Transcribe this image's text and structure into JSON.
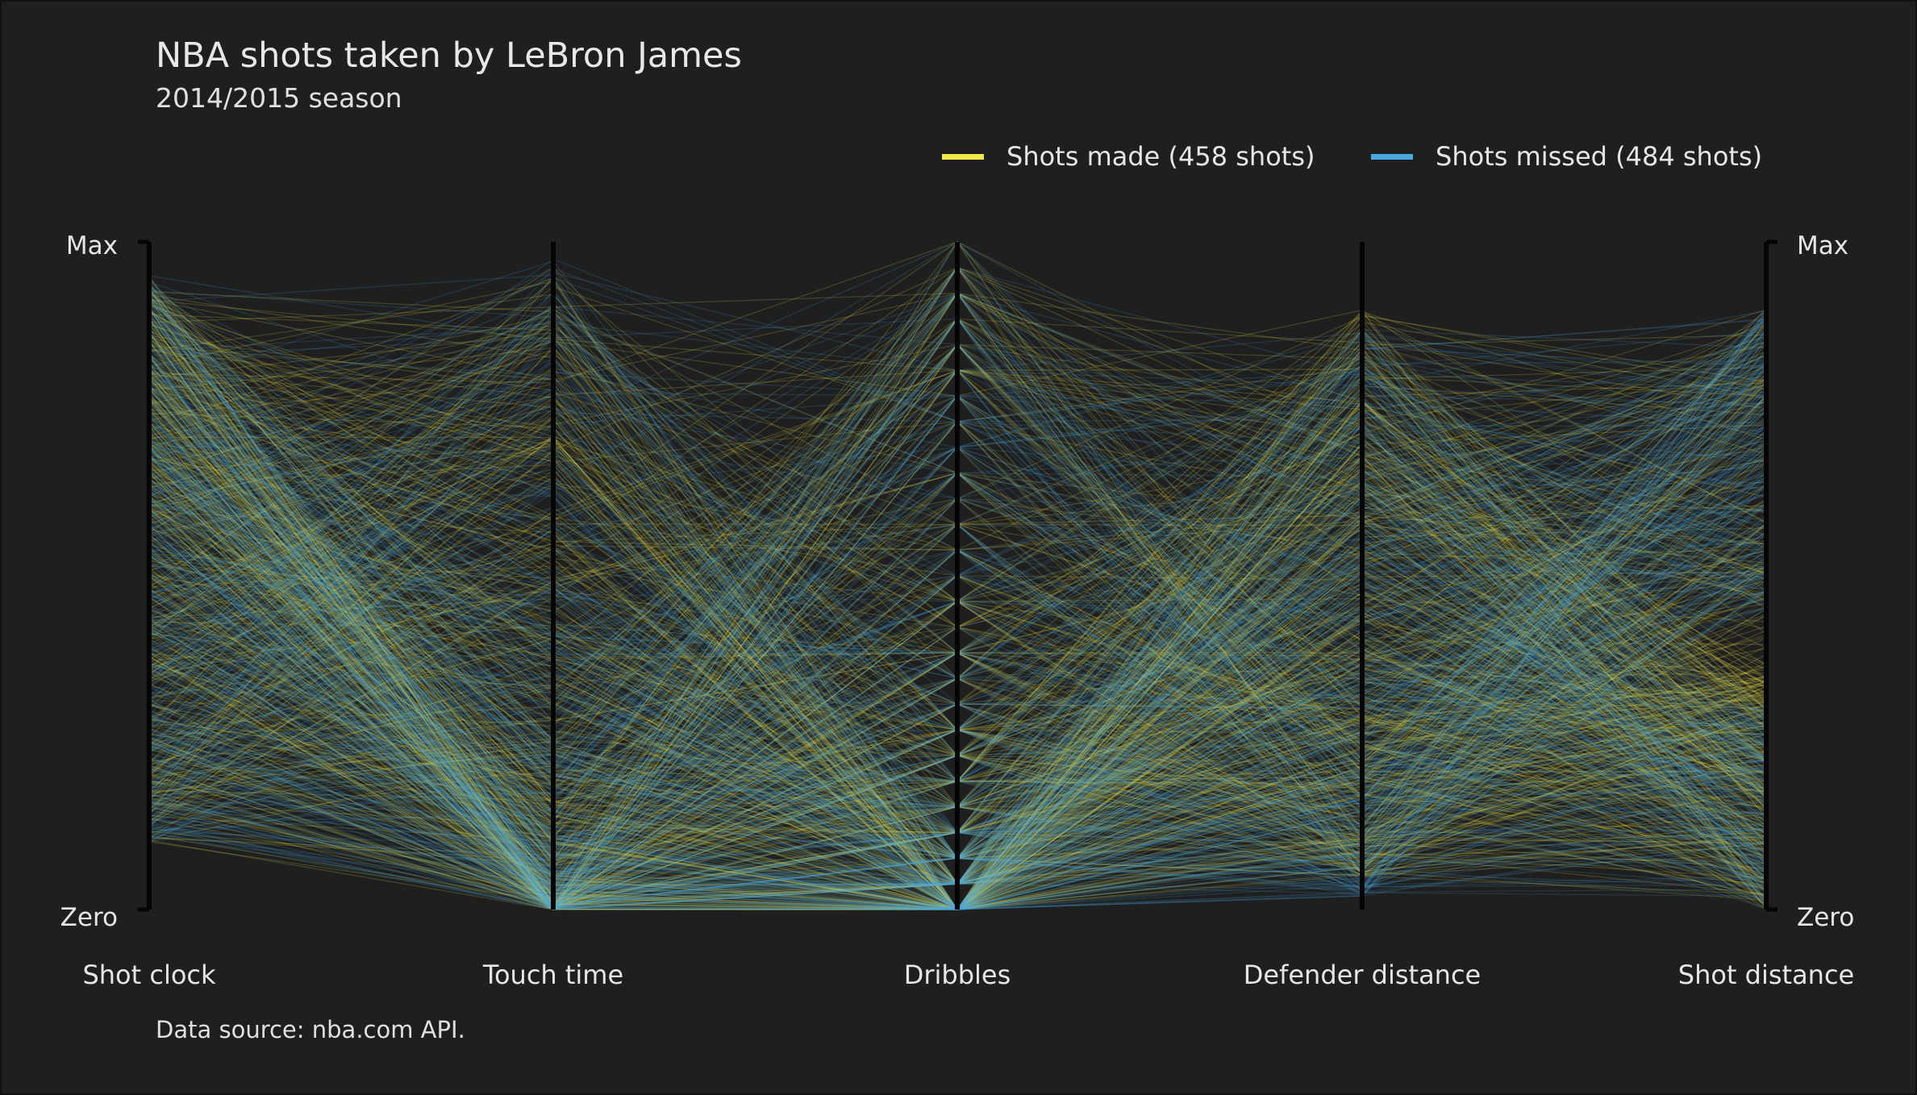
{
  "title": "NBA shots taken by LeBron James",
  "subtitle": "2014/2015 season",
  "source": "Data source: nba.com API.",
  "legend": {
    "made": {
      "label": "Shots made (458 shots)",
      "color": "#f2e84a"
    },
    "missed": {
      "label": "Shots missed (484 shots)",
      "color": "#4aa8e0"
    }
  },
  "scale_labels": {
    "max": "Max",
    "min": "Zero"
  },
  "chart_data": {
    "type": "parallel-coordinates",
    "title": "NBA shots taken by LeBron James",
    "subtitle": "2014/2015 season",
    "dimensions": [
      "Shot clock",
      "Touch time",
      "Dribbles",
      "Defender distance",
      "Shot distance"
    ],
    "scale": {
      "min_label": "Zero",
      "max_label": "Max",
      "normalized_range": [
        0,
        1
      ]
    },
    "series": [
      {
        "name": "Shots made (458 shots)",
        "count": 458,
        "color": "#f2e84a"
      },
      {
        "name": "Shots missed (484 shots)",
        "count": 484,
        "color": "#4aa8e0"
      }
    ],
    "legend_position": "top-right",
    "grid": false
  }
}
